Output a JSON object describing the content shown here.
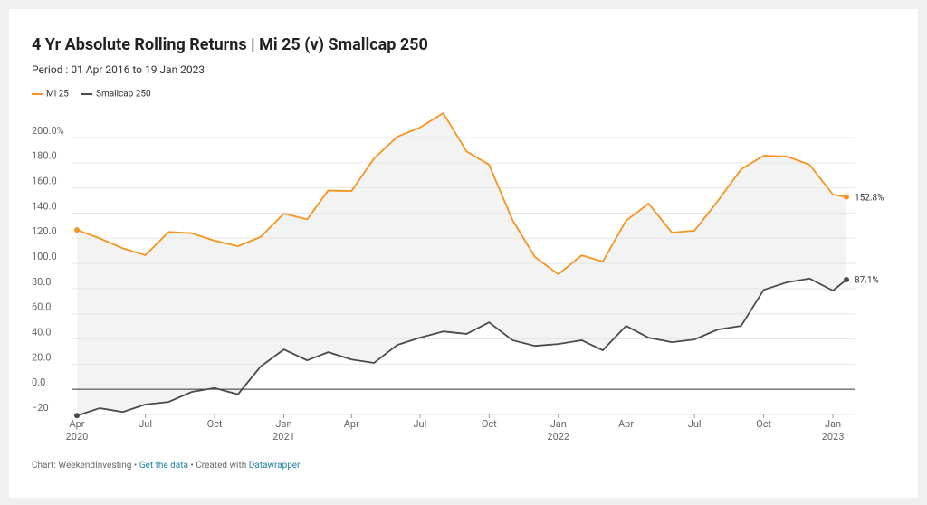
{
  "chart_data": {
    "type": "line",
    "title": "4 Yr Absolute Rolling Returns  |  Mi 25 (v) Smallcap 250",
    "subtitle": "Period : 01 Apr 2016 to 19 Jan 2023",
    "x": [
      "2020-04",
      "2020-05",
      "2020-06",
      "2020-07",
      "2020-08",
      "2020-09",
      "2020-10",
      "2020-11",
      "2020-12",
      "2021-01",
      "2021-02",
      "2021-03",
      "2021-04",
      "2021-05",
      "2021-06",
      "2021-07",
      "2021-08",
      "2021-09",
      "2021-10",
      "2021-11",
      "2021-12",
      "2022-01",
      "2022-02",
      "2022-03",
      "2022-04",
      "2022-05",
      "2022-06",
      "2022-07",
      "2022-08",
      "2022-09",
      "2022-10",
      "2022-11",
      "2022-12",
      "2023-01",
      "2023-01-19"
    ],
    "xlim": [
      "2020-04",
      "2023-01-19"
    ],
    "xticks": [
      {
        "value": "2020-04",
        "label": "Apr",
        "year": "2020"
      },
      {
        "value": "2020-07",
        "label": "Jul"
      },
      {
        "value": "2020-10",
        "label": "Oct"
      },
      {
        "value": "2021-01",
        "label": "Jan",
        "year": "2021"
      },
      {
        "value": "2021-04",
        "label": "Apr"
      },
      {
        "value": "2021-07",
        "label": "Jul"
      },
      {
        "value": "2021-10",
        "label": "Oct"
      },
      {
        "value": "2022-01",
        "label": "Jan",
        "year": "2022"
      },
      {
        "value": "2022-04",
        "label": "Apr"
      },
      {
        "value": "2022-07",
        "label": "Jul"
      },
      {
        "value": "2022-10",
        "label": "Oct"
      },
      {
        "value": "2023-01",
        "label": "Jan",
        "year": "2023"
      }
    ],
    "ylim": [
      -20,
      200
    ],
    "yticks": [
      {
        "value": 200,
        "label": "200.0%"
      },
      {
        "value": 180,
        "label": "180.0"
      },
      {
        "value": 160,
        "label": "160.0"
      },
      {
        "value": 140,
        "label": "140.0"
      },
      {
        "value": 120,
        "label": "120.0"
      },
      {
        "value": 100,
        "label": "100.0"
      },
      {
        "value": 80,
        "label": "80.0"
      },
      {
        "value": 60,
        "label": "60.0"
      },
      {
        "value": 40,
        "label": "40.0"
      },
      {
        "value": 20,
        "label": "20.0"
      },
      {
        "value": 0,
        "label": "0.0"
      },
      {
        "value": -20,
        "label": "−20"
      }
    ],
    "grid": true,
    "series": [
      {
        "name": "Mi 25",
        "color": "#f7931e",
        "values": [
          126.6,
          120,
          112,
          106.5,
          125,
          124,
          118,
          113.7,
          121,
          139.6,
          135,
          158,
          157.5,
          183.5,
          200.7,
          208,
          219.4,
          189,
          178.4,
          134.5,
          105,
          91.4,
          106.5,
          101.4,
          134,
          147.5,
          124.5,
          126,
          149.6,
          174.8,
          185.6,
          185,
          178.4,
          154.7,
          152.8
        ],
        "value_labels": {
          "34": "152.8%"
        }
      },
      {
        "name": "Smallcap 250",
        "color": "#4a4a4a",
        "values": [
          -20.9,
          -15,
          -18,
          -12,
          -10,
          -2,
          1,
          -4,
          18,
          31.7,
          23,
          29.5,
          23.7,
          21,
          35.3,
          41,
          46,
          44,
          53.2,
          39,
          34.5,
          36,
          39,
          31,
          50.4,
          41,
          37.4,
          39.6,
          47.5,
          50.4,
          79,
          85,
          88,
          78.4,
          87.1
        ],
        "value_labels": {
          "34": "87.1%"
        }
      }
    ],
    "footer": {
      "source": "Chart: WeekendInvesting",
      "sep1": " • ",
      "data_link": "Get the data",
      "sep2": " • Created with ",
      "tool_link": "Datawrapper"
    }
  }
}
